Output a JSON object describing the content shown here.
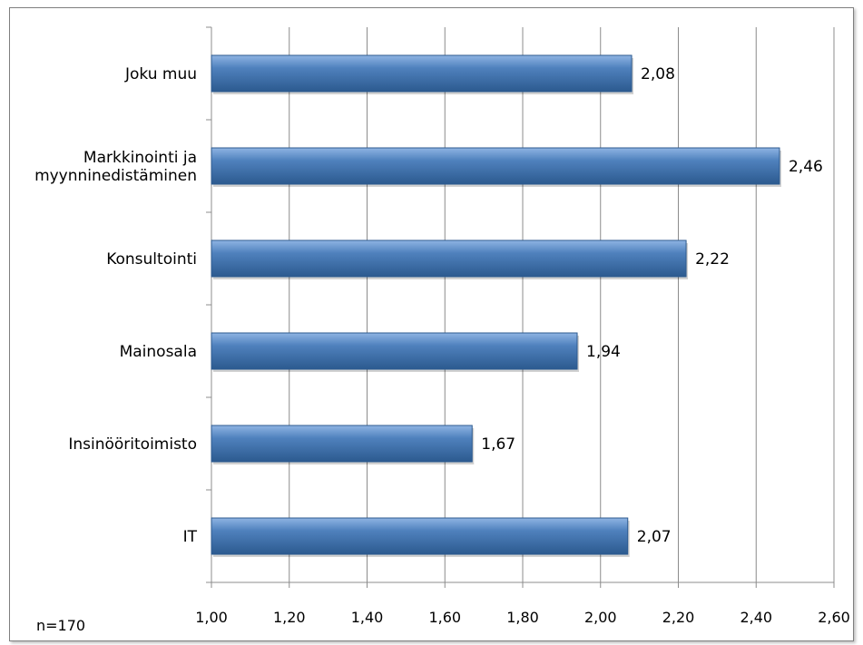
{
  "chart_data": {
    "type": "bar",
    "orientation": "horizontal",
    "categories": [
      "Joku muu",
      "Markkinointi ja myynninedistäminen",
      "Konsultointi",
      "Mainosala",
      "Insinööritoimisto",
      "IT"
    ],
    "category_lines": [
      [
        "Joku muu"
      ],
      [
        "Markkinointi ja",
        "myynninedistäminen"
      ],
      [
        "Konsultointi"
      ],
      [
        "Mainosala"
      ],
      [
        "Insinööritoimisto"
      ],
      [
        "IT"
      ]
    ],
    "values": [
      2.08,
      2.46,
      2.22,
      1.94,
      1.67,
      2.07
    ],
    "value_labels": [
      "2,08",
      "2,46",
      "2,22",
      "1,94",
      "1,67",
      "2,07"
    ],
    "xlim": [
      1.0,
      2.6
    ],
    "xticks": [
      1.0,
      1.2,
      1.4,
      1.6,
      1.8,
      2.0,
      2.2,
      2.4,
      2.6
    ],
    "xtick_labels": [
      "1,00",
      "1,20",
      "1,40",
      "1,60",
      "1,80",
      "2,00",
      "2,20",
      "2,40",
      "2,60"
    ],
    "grid": "vertical",
    "bar_color": "#4f81bd",
    "bar_color_dark": "#2c5a8f",
    "bar_color_light": "#8fb4e3",
    "note": "n=170"
  }
}
